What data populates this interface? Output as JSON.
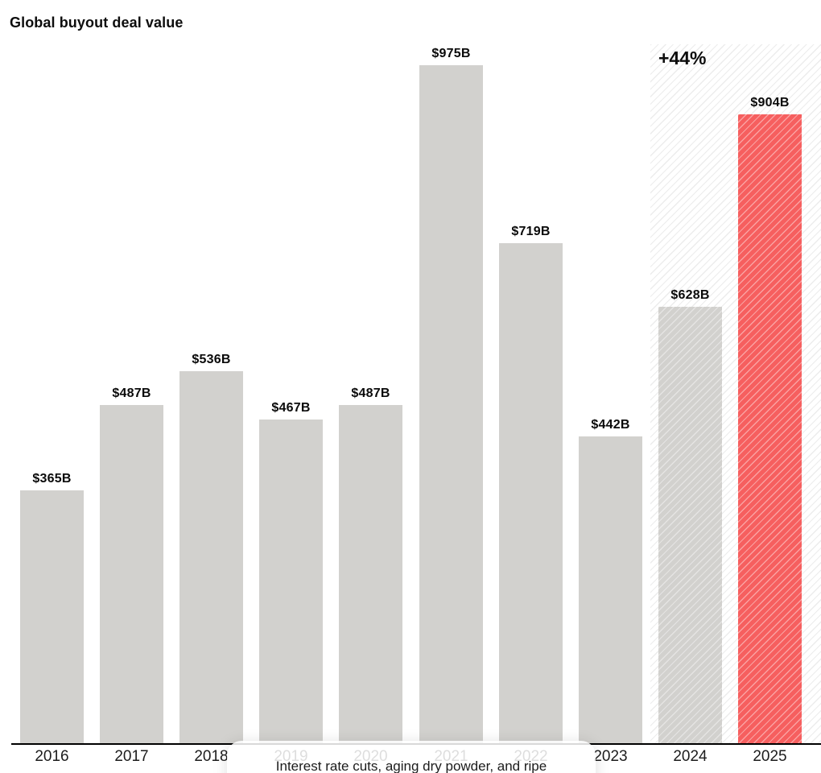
{
  "title": "Global buyout deal value",
  "chart_data": {
    "type": "bar",
    "title": "Global buyout deal value",
    "xlabel": "",
    "ylabel": "",
    "categories": [
      "2016",
      "2017",
      "2018",
      "2019",
      "2020",
      "2021",
      "2022",
      "2023",
      "2024",
      "2025"
    ],
    "values": [
      365,
      487,
      536,
      467,
      487,
      975,
      719,
      442,
      628,
      904
    ],
    "value_labels": [
      "$365B",
      "$487B",
      "$536B",
      "$467B",
      "$487B",
      "$975B",
      "$719B",
      "$442B",
      "$628B",
      "$904B"
    ],
    "unit": "billions USD",
    "ylim": [
      0,
      1010
    ],
    "grid": false,
    "legend": "none",
    "annotation": "+44%",
    "highlight_region": {
      "categories": [
        "2024",
        "2025"
      ],
      "style": "diagonal-hatch",
      "annotation": "+44%"
    },
    "highlight_bar_category": "2025",
    "colors": {
      "bar": "#d2d1ce",
      "highlight_bar": "#f65f5f",
      "hatch_line": "#ececec",
      "baseline": "#000000",
      "label_text": "#0a0a0a"
    }
  },
  "tooltip": {
    "text": "Interest rate cuts, aging dry powder, and ripe"
  }
}
